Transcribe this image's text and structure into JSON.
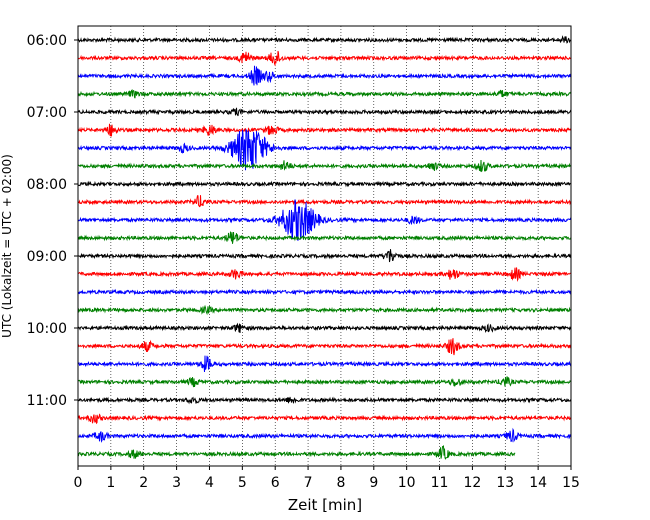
{
  "chart_data": {
    "type": "line",
    "title": "",
    "xlabel": "Zeit  [min]",
    "ylabel": "UTC (Lokalzeit = UTC + 02:00)",
    "xlim": [
      0,
      15
    ],
    "x_ticks": [
      "0",
      "1",
      "2",
      "3",
      "4",
      "5",
      "6",
      "7",
      "8",
      "9",
      "10",
      "11",
      "12",
      "13",
      "14",
      "15"
    ],
    "y_tick_labels": [
      "06:00",
      "07:00",
      "08:00",
      "09:00",
      "10:00",
      "11:00"
    ],
    "grid": "vertical dotted",
    "colors": [
      "#000000",
      "#ff0000",
      "#0000ff",
      "#008000"
    ],
    "traces": [
      {
        "label_time": "06:00",
        "color": "#000000",
        "end_min": 15,
        "events": [
          {
            "t": 14.8,
            "amp": 0.25
          }
        ]
      },
      {
        "label_time": "06:15",
        "color": "#ff0000",
        "end_min": 15,
        "events": [
          {
            "t": 5.1,
            "amp": 0.7
          },
          {
            "t": 6.0,
            "amp": 0.8
          }
        ]
      },
      {
        "label_time": "06:30",
        "color": "#0000ff",
        "end_min": 15,
        "events": [
          {
            "t": 5.4,
            "amp": 1.0
          },
          {
            "t": 5.8,
            "amp": 0.5
          }
        ]
      },
      {
        "label_time": "06:45",
        "color": "#008000",
        "end_min": 15,
        "events": [
          {
            "t": 1.7,
            "amp": 0.3
          },
          {
            "t": 12.9,
            "amp": 0.3
          }
        ]
      },
      {
        "label_time": "07:00",
        "color": "#000000",
        "end_min": 15,
        "events": [
          {
            "t": 4.8,
            "amp": 0.3
          }
        ]
      },
      {
        "label_time": "07:15",
        "color": "#ff0000",
        "end_min": 15,
        "events": [
          {
            "t": 1.0,
            "amp": 0.6
          },
          {
            "t": 4.0,
            "amp": 0.6
          },
          {
            "t": 5.9,
            "amp": 0.5
          }
        ]
      },
      {
        "label_time": "07:30",
        "color": "#0000ff",
        "end_min": 15,
        "events": [
          {
            "t": 5.2,
            "amp": 2.5
          },
          {
            "t": 3.2,
            "amp": 0.4
          }
        ]
      },
      {
        "label_time": "07:45",
        "color": "#008000",
        "end_min": 15,
        "events": [
          {
            "t": 6.3,
            "amp": 0.5
          },
          {
            "t": 10.8,
            "amp": 0.4
          },
          {
            "t": 12.3,
            "amp": 0.6
          }
        ]
      },
      {
        "label_time": "08:00",
        "color": "#000000",
        "end_min": 15,
        "events": []
      },
      {
        "label_time": "08:15",
        "color": "#ff0000",
        "end_min": 15,
        "events": [
          {
            "t": 3.7,
            "amp": 0.6
          }
        ]
      },
      {
        "label_time": "08:30",
        "color": "#0000ff",
        "end_min": 15,
        "events": [
          {
            "t": 6.7,
            "amp": 2.3
          },
          {
            "t": 10.2,
            "amp": 0.4
          }
        ]
      },
      {
        "label_time": "08:45",
        "color": "#008000",
        "end_min": 15,
        "events": [
          {
            "t": 4.7,
            "amp": 0.7
          }
        ]
      },
      {
        "label_time": "09:00",
        "color": "#000000",
        "end_min": 15,
        "events": [
          {
            "t": 9.5,
            "amp": 0.7
          }
        ]
      },
      {
        "label_time": "09:15",
        "color": "#ff0000",
        "end_min": 15,
        "events": [
          {
            "t": 4.8,
            "amp": 0.5
          },
          {
            "t": 11.4,
            "amp": 0.6
          },
          {
            "t": 13.3,
            "amp": 0.6
          }
        ]
      },
      {
        "label_time": "09:30",
        "color": "#0000ff",
        "end_min": 15,
        "events": []
      },
      {
        "label_time": "09:45",
        "color": "#008000",
        "end_min": 15,
        "events": [
          {
            "t": 3.9,
            "amp": 0.3
          }
        ]
      },
      {
        "label_time": "10:00",
        "color": "#000000",
        "end_min": 15,
        "events": [
          {
            "t": 4.9,
            "amp": 0.4
          },
          {
            "t": 12.5,
            "amp": 0.3
          }
        ]
      },
      {
        "label_time": "10:15",
        "color": "#ff0000",
        "end_min": 15,
        "events": [
          {
            "t": 2.1,
            "amp": 0.5
          },
          {
            "t": 11.4,
            "amp": 0.9
          }
        ]
      },
      {
        "label_time": "10:30",
        "color": "#0000ff",
        "end_min": 15,
        "events": [
          {
            "t": 3.9,
            "amp": 0.8
          }
        ]
      },
      {
        "label_time": "10:45",
        "color": "#008000",
        "end_min": 15,
        "events": [
          {
            "t": 3.5,
            "amp": 0.4
          },
          {
            "t": 11.5,
            "amp": 0.4
          },
          {
            "t": 13.0,
            "amp": 0.5
          }
        ]
      },
      {
        "label_time": "11:00",
        "color": "#000000",
        "end_min": 15,
        "events": [
          {
            "t": 3.5,
            "amp": 0.3
          },
          {
            "t": 6.5,
            "amp": 0.3
          }
        ]
      },
      {
        "label_time": "11:15",
        "color": "#ff0000",
        "end_min": 15,
        "events": [
          {
            "t": 0.5,
            "amp": 0.5
          }
        ]
      },
      {
        "label_time": "11:30",
        "color": "#0000ff",
        "end_min": 15,
        "events": [
          {
            "t": 0.7,
            "amp": 0.5
          },
          {
            "t": 13.2,
            "amp": 0.6
          }
        ]
      },
      {
        "label_time": "11:45",
        "color": "#008000",
        "end_min": 13.3,
        "events": [
          {
            "t": 11.1,
            "amp": 0.7
          },
          {
            "t": 1.7,
            "amp": 0.4
          }
        ]
      }
    ]
  }
}
